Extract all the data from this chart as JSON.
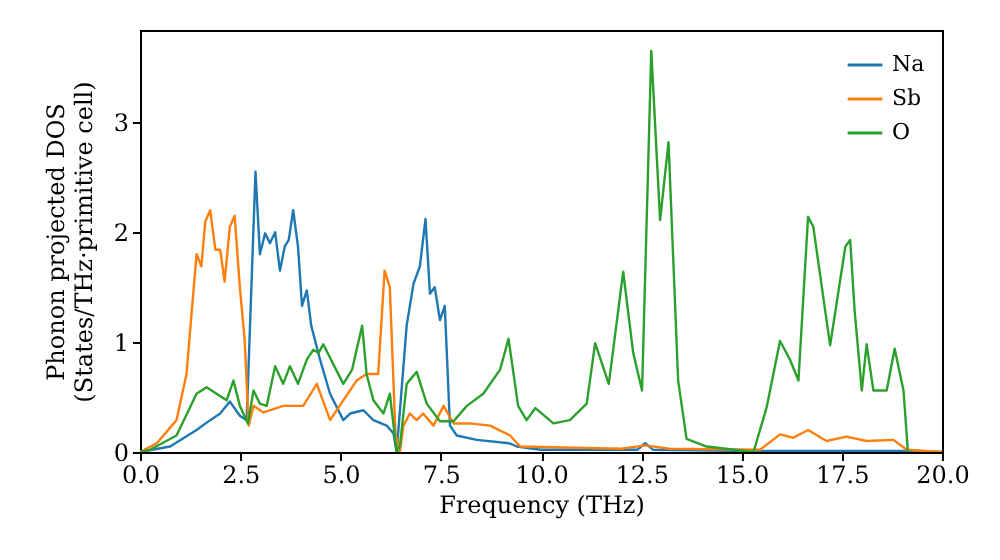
{
  "chart_data": {
    "type": "line",
    "xlabel": "Frequency (THz)",
    "ylabel": "Phonon projected DOS\n(States/THz·primitive cell)",
    "xlim": [
      0,
      20
    ],
    "ylim": [
      0,
      3.84
    ],
    "xticks": [
      {
        "value": 0,
        "label": "0.0"
      },
      {
        "value": 2.5,
        "label": "2.5"
      },
      {
        "value": 5,
        "label": "5.0"
      },
      {
        "value": 7.5,
        "label": "7.5"
      },
      {
        "value": 10,
        "label": "10.0"
      },
      {
        "value": 12.5,
        "label": "12.5"
      },
      {
        "value": 15,
        "label": "15.0"
      },
      {
        "value": 17.5,
        "label": "17.5"
      },
      {
        "value": 20,
        "label": "20.0"
      }
    ],
    "yticks": [
      0,
      1,
      2,
      3
    ],
    "grid": false,
    "legend": "top right",
    "series": [
      {
        "name": "Na",
        "color": "#1f77b4",
        "x": [
          0,
          0.75,
          1.41,
          1.75,
          2.0,
          2.24,
          2.49,
          2.66,
          2.88,
          2.99,
          3.12,
          3.24,
          3.37,
          3.49,
          3.61,
          3.71,
          3.82,
          3.94,
          4.04,
          4.16,
          4.27,
          4.49,
          4.74,
          5.07,
          5.24,
          5.57,
          5.82,
          6.15,
          6.32,
          6.4,
          6.65,
          6.82,
          6.98,
          7.12,
          7.23,
          7.35,
          7.48,
          7.6,
          7.73,
          7.9,
          8.4,
          9.2,
          9.4,
          10.0,
          12.4,
          12.6,
          12.8,
          15.0,
          19.4,
          20.0
        ],
        "values": [
          0,
          0.05,
          0.2,
          0.29,
          0.35,
          0.46,
          0.33,
          0.29,
          2.55,
          1.8,
          1.99,
          1.9,
          2.0,
          1.65,
          1.87,
          1.93,
          2.2,
          1.87,
          1.33,
          1.47,
          1.15,
          0.84,
          0.53,
          0.29,
          0.35,
          0.38,
          0.29,
          0.24,
          0.17,
          0,
          1.15,
          1.53,
          1.69,
          2.12,
          1.44,
          1.5,
          1.2,
          1.33,
          0.24,
          0.15,
          0.11,
          0.08,
          0.05,
          0.02,
          0.02,
          0.08,
          0.02,
          0.01,
          0.01,
          0
        ]
      },
      {
        "name": "Sb",
        "color": "#ff7f0e",
        "x": [
          0,
          0.42,
          0.91,
          1.16,
          1.41,
          1.53,
          1.63,
          1.75,
          1.88,
          2.0,
          2.11,
          2.24,
          2.36,
          2.49,
          2.61,
          2.71,
          2.83,
          3.08,
          3.57,
          3.82,
          4.07,
          4.41,
          4.74,
          5.07,
          5.4,
          5.65,
          5.94,
          6.1,
          6.23,
          6.37,
          6.48,
          6.57,
          6.73,
          6.9,
          7.06,
          7.32,
          7.57,
          7.82,
          8.23,
          8.73,
          9.23,
          9.48,
          12.0,
          12.6,
          13.2,
          15.46,
          15.96,
          16.29,
          16.66,
          17.12,
          17.62,
          18.12,
          18.79,
          19.12,
          20.0
        ],
        "values": [
          0,
          0.08,
          0.29,
          0.71,
          1.8,
          1.69,
          2.1,
          2.2,
          1.84,
          1.84,
          1.55,
          2.05,
          2.15,
          1.5,
          1.02,
          0.24,
          0.42,
          0.36,
          0.42,
          0.42,
          0.42,
          0.62,
          0.29,
          0.47,
          0.65,
          0.71,
          0.71,
          1.65,
          1.5,
          0.17,
          0,
          0.24,
          0.35,
          0.29,
          0.35,
          0.24,
          0.42,
          0.26,
          0.26,
          0.24,
          0.15,
          0.05,
          0.03,
          0.06,
          0.03,
          0.02,
          0.16,
          0.13,
          0.2,
          0.1,
          0.14,
          0.1,
          0.11,
          0.02,
          0
        ]
      },
      {
        "name": "O",
        "color": "#2ca02c",
        "x": [
          0,
          0.25,
          0.91,
          1.41,
          1.66,
          1.91,
          2.16,
          2.33,
          2.49,
          2.69,
          2.83,
          2.99,
          3.16,
          3.37,
          3.57,
          3.74,
          3.94,
          4.16,
          4.32,
          4.45,
          4.57,
          4.82,
          5.07,
          5.29,
          5.54,
          5.65,
          5.82,
          6.07,
          6.23,
          6.4,
          6.48,
          6.65,
          6.9,
          7.15,
          7.48,
          7.82,
          8.15,
          8.56,
          8.98,
          9.19,
          9.43,
          9.64,
          9.86,
          10.31,
          10.72,
          11.14,
          11.35,
          11.69,
          12.05,
          12.3,
          12.52,
          12.75,
          12.97,
          13.18,
          13.42,
          13.63,
          14.13,
          15.3,
          15.63,
          15.96,
          16.21,
          16.42,
          16.66,
          16.79,
          17.21,
          17.59,
          17.71,
          17.82,
          18.0,
          18.12,
          18.29,
          18.62,
          18.82,
          19.04,
          19.15
        ],
        "values": [
          0,
          0.02,
          0.15,
          0.53,
          0.59,
          0.53,
          0.47,
          0.65,
          0.42,
          0.26,
          0.56,
          0.44,
          0.42,
          0.78,
          0.62,
          0.78,
          0.62,
          0.84,
          0.93,
          0.9,
          0.98,
          0.8,
          0.62,
          0.75,
          1.15,
          0.71,
          0.47,
          0.35,
          0.53,
          0,
          0.05,
          0.62,
          0.73,
          0.44,
          0.28,
          0.28,
          0.42,
          0.53,
          0.75,
          1.03,
          0.42,
          0.29,
          0.4,
          0.26,
          0.29,
          0.44,
          0.99,
          0.62,
          1.64,
          0.9,
          0.56,
          3.65,
          2.11,
          2.82,
          0.65,
          0.12,
          0.05,
          0,
          0.41,
          1.01,
          0.84,
          0.65,
          2.14,
          2.05,
          0.97,
          1.87,
          1.93,
          1.29,
          0.56,
          0.98,
          0.56,
          0.56,
          0.94,
          0.56,
          0
        ]
      }
    ]
  }
}
